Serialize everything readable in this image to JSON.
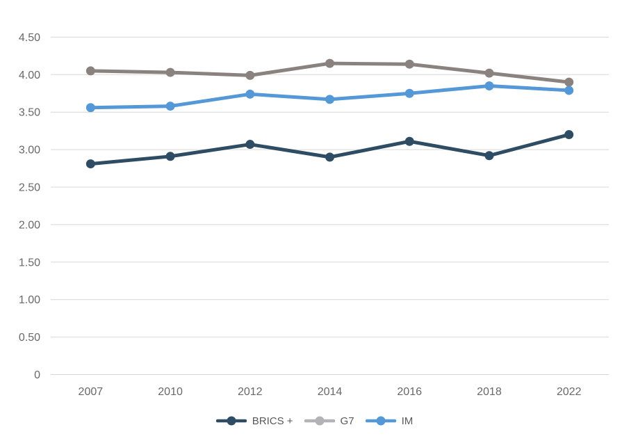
{
  "chart_data": {
    "type": "line",
    "title": "",
    "xlabel": "",
    "ylabel": "",
    "x_categories": [
      "2007",
      "2010",
      "2012",
      "2014",
      "2016",
      "2018",
      "2022"
    ],
    "series": [
      {
        "name": "BRICS +",
        "color": "#2e4c63",
        "legend_color": "#2e4c63",
        "values": [
          2.81,
          2.91,
          3.07,
          2.9,
          3.11,
          2.92,
          3.2
        ]
      },
      {
        "name": "G7",
        "color": "#8a827e",
        "legend_color": "#b3b3b6",
        "values": [
          4.05,
          4.03,
          3.99,
          4.15,
          4.14,
          4.02,
          3.9
        ]
      },
      {
        "name": "IM",
        "color": "#5598d7",
        "legend_color": "#5598d7",
        "values": [
          3.56,
          3.58,
          3.74,
          3.67,
          3.75,
          3.85,
          3.79
        ]
      }
    ],
    "y_ticks": [
      "4.50",
      "4.00",
      "3.50",
      "3.00",
      "2.50",
      "2.00",
      "1.50",
      "1.00",
      "0.50",
      "0"
    ],
    "y_tick_values": [
      4.5,
      4.0,
      3.5,
      3.0,
      2.5,
      2.0,
      1.5,
      1.0,
      0.5,
      0
    ],
    "ylim": [
      0,
      4.5
    ],
    "grid": true,
    "legend_position": "bottom",
    "colors": {
      "background": "#ffffff",
      "gridline": "#d8d8d8",
      "axis_text": "#686868",
      "legend_text": "#595959"
    }
  }
}
